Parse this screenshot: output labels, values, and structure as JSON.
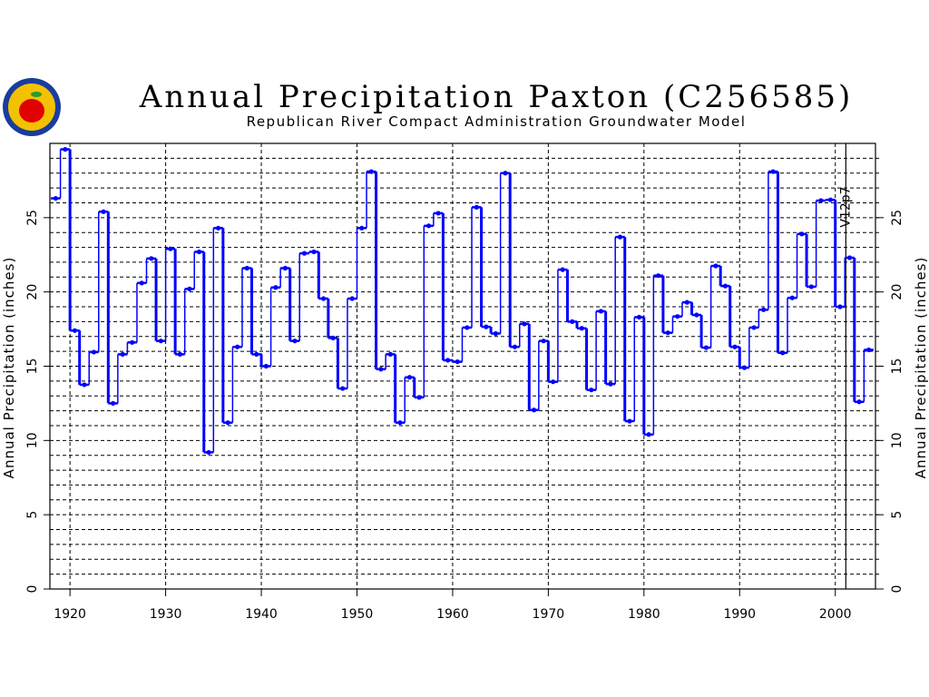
{
  "chart_data": {
    "type": "line",
    "style": "step",
    "title": "Annual Precipitation Paxton (C256585)",
    "subtitle": "Republican River Compact Administration Groundwater Model",
    "xlabel": "",
    "ylabel": "Annual Precipitation (inches)",
    "ylabel_right": "Annual Precipitation (inches)",
    "xlim": [
      1917.9,
      2004.2
    ],
    "ylim": [
      0,
      30
    ],
    "xticks": [
      1920,
      1930,
      1940,
      1950,
      1960,
      1970,
      1980,
      1990,
      2000
    ],
    "yticks": [
      0,
      5,
      10,
      15,
      20,
      25
    ],
    "grid": true,
    "series_color": "#0000ff",
    "marker_line": {
      "x": 2001.1,
      "label": "V12p7"
    },
    "x": [
      1918,
      1919,
      1920,
      1921,
      1922,
      1923,
      1924,
      1925,
      1926,
      1927,
      1928,
      1929,
      1930,
      1931,
      1932,
      1933,
      1934,
      1935,
      1936,
      1937,
      1938,
      1939,
      1940,
      1941,
      1942,
      1943,
      1944,
      1945,
      1946,
      1947,
      1948,
      1949,
      1950,
      1951,
      1952,
      1953,
      1954,
      1955,
      1956,
      1957,
      1958,
      1959,
      1960,
      1961,
      1962,
      1963,
      1964,
      1965,
      1966,
      1967,
      1968,
      1969,
      1970,
      1971,
      1972,
      1973,
      1974,
      1975,
      1976,
      1977,
      1978,
      1979,
      1980,
      1981,
      1982,
      1983,
      1984,
      1985,
      1986,
      1987,
      1988,
      1989,
      1990,
      1991,
      1992,
      1993,
      1994,
      1995,
      1996,
      1997,
      1998,
      1999,
      2000,
      2001,
      2002,
      2003
    ],
    "values": [
      26.3,
      29.6,
      17.4,
      13.75,
      15.95,
      25.4,
      12.5,
      15.8,
      16.6,
      20.6,
      22.25,
      16.7,
      22.9,
      15.8,
      20.2,
      22.7,
      9.2,
      24.3,
      11.2,
      16.3,
      21.6,
      15.8,
      15.0,
      20.3,
      21.6,
      16.7,
      22.6,
      22.7,
      19.55,
      16.9,
      13.5,
      19.55,
      24.3,
      28.1,
      14.8,
      15.8,
      11.2,
      14.25,
      12.9,
      24.45,
      25.3,
      15.4,
      15.3,
      17.6,
      25.7,
      17.65,
      17.2,
      28.0,
      16.3,
      17.85,
      12.05,
      16.7,
      13.95,
      21.5,
      18.0,
      17.55,
      13.4,
      18.7,
      13.8,
      23.7,
      11.3,
      18.3,
      10.4,
      21.1,
      17.25,
      18.35,
      19.3,
      18.45,
      16.25,
      21.75,
      20.4,
      16.3,
      14.9,
      17.6,
      18.8,
      28.1,
      15.9,
      19.6,
      23.9,
      20.35,
      26.15,
      26.2,
      19.0,
      22.3,
      12.6,
      16.1
    ]
  }
}
